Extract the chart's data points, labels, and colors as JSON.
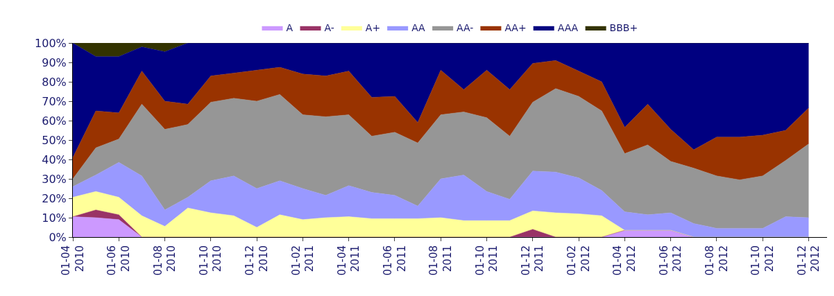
{
  "chart_data": {
    "type": "area",
    "stacked": true,
    "categories": [
      "01-04\n2010",
      null,
      "01-06\n2010",
      null,
      "01-08\n2010",
      null,
      "01-10\n2010",
      null,
      "01-12\n2010",
      null,
      "01-02\n2011",
      null,
      "01-04\n2011",
      null,
      "01-06\n2011",
      null,
      "01-08\n2011",
      null,
      "01-10\n2011",
      null,
      "01-12\n2011",
      null,
      "01-02\n2012",
      null,
      "01-04\n2012",
      null,
      "01-06\n2012",
      null,
      "01-08\n2012",
      null,
      "01-10\n2012",
      null,
      "01-12\n2012"
    ],
    "series": [
      {
        "name": "A",
        "color": "#cc99ff",
        "values": [
          10.5,
          10,
          9,
          0,
          0,
          0,
          0,
          0,
          0,
          0,
          0,
          0,
          0,
          0,
          0,
          0,
          0,
          0,
          0,
          0,
          0,
          0,
          0,
          0,
          3.5,
          3.5,
          3.5,
          0,
          0,
          0,
          0,
          0,
          0
        ]
      },
      {
        "name": "A-",
        "color": "#993366",
        "values": [
          0,
          4,
          2.5,
          0,
          0,
          0,
          0,
          0,
          0,
          0,
          0,
          0,
          0,
          0,
          0,
          0,
          0,
          0,
          0,
          0,
          4,
          0,
          0,
          0,
          0,
          0,
          0,
          0,
          0,
          0,
          0,
          0,
          0
        ]
      },
      {
        "name": "A+",
        "color": "#ffff99",
        "values": [
          10,
          9.5,
          9,
          11,
          5.5,
          15,
          12.5,
          11,
          5,
          11.5,
          9,
          10,
          10.5,
          9.5,
          9.5,
          9.5,
          10,
          8.5,
          8.5,
          8.5,
          9.5,
          12.5,
          12,
          11,
          0,
          0,
          0,
          0,
          0,
          0,
          0,
          0,
          0
        ]
      },
      {
        "name": "AA",
        "color": "#9999ff",
        "values": [
          5.5,
          8.5,
          18,
          20.5,
          8.5,
          5.5,
          16.5,
          20.5,
          20,
          17.5,
          16,
          11.5,
          16,
          13.5,
          12,
          6.5,
          20,
          23.5,
          15,
          11,
          20.5,
          21,
          18.5,
          13,
          9.5,
          8,
          9,
          7,
          4.5,
          4.5,
          4.5,
          10.5,
          10
        ]
      },
      {
        "name": "AA-",
        "color": "#969696",
        "values": [
          4,
          14,
          12,
          37,
          41.5,
          37.5,
          40.5,
          40,
          45,
          44.5,
          38,
          40.5,
          36.5,
          29,
          32.5,
          32.5,
          33,
          32.5,
          38,
          32.5,
          35.5,
          43,
          42,
          41,
          30,
          36,
          26.5,
          28.5,
          27,
          25,
          27,
          29,
          38
        ]
      },
      {
        "name": "AA+",
        "color": "#993300",
        "values": [
          11,
          19,
          13.5,
          17,
          14.5,
          10.5,
          13.5,
          13,
          16,
          14,
          21,
          21,
          22.5,
          20,
          18.5,
          10.5,
          23,
          11.5,
          24.5,
          24,
          20,
          14.5,
          13,
          15,
          13.5,
          21,
          16.5,
          9.5,
          20,
          22,
          21,
          15.5,
          18.5
        ]
      },
      {
        "name": "AAA",
        "color": "#000080",
        "values": [
          59,
          28,
          29,
          12.5,
          25.5,
          31.5,
          17,
          15.5,
          14,
          12.5,
          16,
          17,
          14.5,
          28,
          27.5,
          41,
          14,
          24,
          14,
          24,
          10.5,
          9,
          14.5,
          20,
          43.5,
          31.5,
          44.5,
          55,
          48.5,
          48.5,
          47.5,
          45,
          33.5
        ]
      },
      {
        "name": "BBB+",
        "color": "#333300",
        "values": [
          0,
          7,
          7,
          2,
          4.5,
          0,
          0,
          0,
          0,
          0,
          0,
          0,
          0,
          0,
          0,
          0,
          0,
          0,
          0,
          0,
          0,
          0,
          0,
          0,
          0,
          0,
          0,
          0,
          0,
          0,
          0,
          0,
          0
        ]
      }
    ],
    "ylim": [
      0,
      100
    ],
    "yticks": [
      {
        "value": 0,
        "label": "0%"
      },
      {
        "value": 10,
        "label": "10%"
      },
      {
        "value": 20,
        "label": "20%"
      },
      {
        "value": 30,
        "label": "30%"
      },
      {
        "value": 40,
        "label": "40%"
      },
      {
        "value": 50,
        "label": "50%"
      },
      {
        "value": 60,
        "label": "60%"
      },
      {
        "value": 70,
        "label": "70%"
      },
      {
        "value": 80,
        "label": "80%"
      },
      {
        "value": 90,
        "label": "90%"
      },
      {
        "value": 100,
        "label": "100%"
      }
    ],
    "legend": "top"
  }
}
